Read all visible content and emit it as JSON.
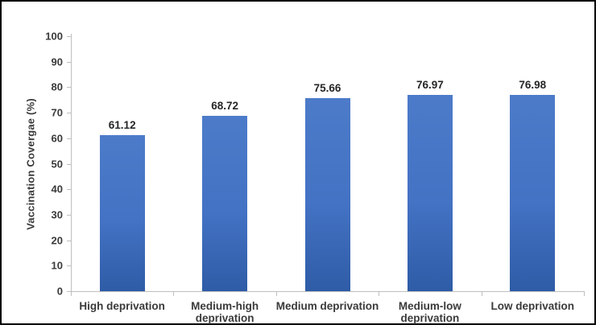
{
  "chart_data": {
    "type": "bar",
    "title": "",
    "xlabel": "",
    "ylabel": "Vaccination Covergae (%)",
    "categories": [
      "High deprivation",
      "Medium-high deprivation",
      "Medium deprivation",
      "Medium-low deprivation",
      "Low deprivation"
    ],
    "values": [
      61.12,
      68.72,
      75.66,
      76.97,
      76.98
    ],
    "value_labels": [
      "61.12",
      "68.72",
      "75.66",
      "76.97",
      "76.98"
    ],
    "ylim": [
      0,
      100
    ],
    "yticks": [
      0,
      10,
      20,
      30,
      40,
      50,
      60,
      70,
      80,
      90,
      100
    ],
    "grid": false,
    "legend": "none",
    "colors": {
      "bar_fill": "#4472C4",
      "bar_fill_top": "#4C7BC9",
      "bar_fill_bottom": "#2E5CA6",
      "axis_line": "#BFBFBF",
      "tick_text": "#3A3A3A",
      "value_text": "#262626",
      "frame_border": "#000000",
      "background": "#FFFFFF"
    }
  }
}
